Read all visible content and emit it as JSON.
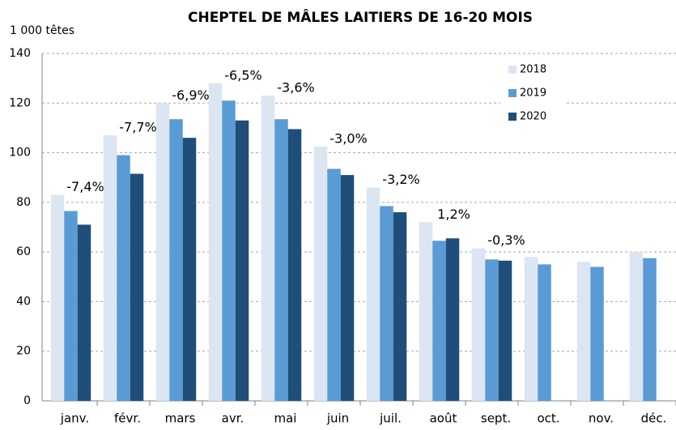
{
  "chart_data": {
    "type": "bar",
    "title": "CHEPTEL DE MÂLES LAITIERS DE 16-20 MOIS",
    "y_axis_label": "1 000 têtes",
    "categories": [
      "janv.",
      "févr.",
      "mars",
      "avr.",
      "mai",
      "juin",
      "juil.",
      "août",
      "sept.",
      "oct.",
      "nov.",
      "déc."
    ],
    "series": [
      {
        "name": "2018",
        "color": "#dce6f2",
        "values": [
          83,
          107,
          120,
          128,
          123,
          102.5,
          86,
          72,
          61.5,
          58,
          56,
          60
        ]
      },
      {
        "name": "2019",
        "color": "#5b9bd5",
        "values": [
          76.5,
          99,
          113.5,
          121,
          113.5,
          93.5,
          78.5,
          64.5,
          57,
          55,
          54,
          57.5
        ]
      },
      {
        "name": "2020",
        "color": "#1f4e79",
        "values": [
          71,
          91.5,
          106,
          113,
          109.5,
          91,
          76,
          65.5,
          56.5,
          null,
          null,
          null
        ]
      }
    ],
    "annotations": [
      "-7,4%",
      "-7,7%",
      "-6,9%",
      "-6,5%",
      "-3,6%",
      "-3,0%",
      "-3,2%",
      "1,2%",
      "-0,3%"
    ],
    "ylim": [
      0,
      140
    ],
    "yticks": [
      0,
      20,
      40,
      60,
      80,
      100,
      120,
      140
    ],
    "grid": true,
    "legend": "top-right"
  }
}
